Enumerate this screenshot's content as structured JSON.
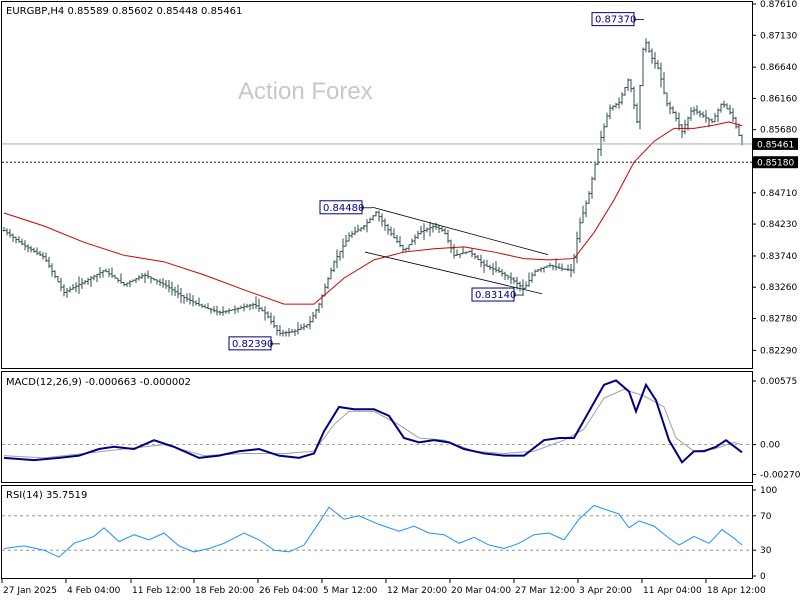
{
  "chart_data": {
    "type": "candlestick",
    "symbol_line": "EURGBP,H4  0.85589 0.85602 0.85448 0.85461",
    "watermark": "Action Forex",
    "price_axis_ticks": [
      "0.87610",
      "0.87130",
      "0.86640",
      "0.86160",
      "0.85680",
      "0.85200",
      "0.84710",
      "0.84230",
      "0.83740",
      "0.83260",
      "0.82780",
      "0.82290"
    ],
    "price_range": [
      0.8205,
      0.8761
    ],
    "current_price": "0.85461",
    "current_price_value": 0.85461,
    "level_line": "0.85180",
    "level_line_value": 0.8518,
    "annotations": [
      {
        "label": "0.84480",
        "value": 0.8448
      },
      {
        "label": "0.83140",
        "value": 0.8314
      },
      {
        "label": "0.82390",
        "value": 0.8239
      },
      {
        "label": "0.87370",
        "value": 0.8737
      }
    ],
    "channel": {
      "upper": [
        [
          0.8449,
          0.8376
        ],
        "top-line"
      ],
      "lower": [
        [
          0.838,
          0.8316
        ],
        "bottom-line"
      ]
    },
    "x_labels": [
      "27 Jan 2025",
      "4 Feb 04:00",
      "11 Feb 12:00",
      "18 Feb 20:00",
      "26 Feb 04:00",
      "5 Mar 12:00",
      "12 Mar 20:00",
      "20 Mar 04:00",
      "27 Mar 12:00",
      "3 Apr 20:00",
      "11 Apr 04:00",
      "18 Apr 12:00"
    ],
    "price_path": [
      [
        0,
        0.8413
      ],
      [
        20,
        0.839
      ],
      [
        40,
        0.8372
      ],
      [
        60,
        0.8318
      ],
      [
        80,
        0.8334
      ],
      [
        100,
        0.8352
      ],
      [
        120,
        0.833
      ],
      [
        140,
        0.8345
      ],
      [
        160,
        0.833
      ],
      [
        180,
        0.831
      ],
      [
        200,
        0.8295
      ],
      [
        215,
        0.8287
      ],
      [
        230,
        0.8292
      ],
      [
        250,
        0.83
      ],
      [
        262,
        0.8285
      ],
      [
        275,
        0.8255
      ],
      [
        290,
        0.8258
      ],
      [
        305,
        0.827
      ],
      [
        315,
        0.83
      ],
      [
        330,
        0.8365
      ],
      [
        345,
        0.8405
      ],
      [
        360,
        0.842
      ],
      [
        372,
        0.8441
      ],
      [
        385,
        0.8412
      ],
      [
        400,
        0.8382
      ],
      [
        415,
        0.841
      ],
      [
        430,
        0.842
      ],
      [
        440,
        0.8412
      ],
      [
        450,
        0.8375
      ],
      [
        465,
        0.8381
      ],
      [
        480,
        0.836
      ],
      [
        495,
        0.835
      ],
      [
        508,
        0.8338
      ],
      [
        520,
        0.8323
      ],
      [
        530,
        0.835
      ],
      [
        545,
        0.836
      ],
      [
        558,
        0.8354
      ],
      [
        568,
        0.8352
      ],
      [
        575,
        0.842
      ],
      [
        585,
        0.847
      ],
      [
        595,
        0.8545
      ],
      [
        605,
        0.86
      ],
      [
        615,
        0.861
      ],
      [
        625,
        0.8648
      ],
      [
        633,
        0.858
      ],
      [
        640,
        0.871
      ],
      [
        647,
        0.868
      ],
      [
        655,
        0.866
      ],
      [
        662,
        0.861
      ],
      [
        670,
        0.8592
      ],
      [
        678,
        0.8565
      ],
      [
        688,
        0.86
      ],
      [
        698,
        0.859
      ],
      [
        708,
        0.858
      ],
      [
        718,
        0.861
      ],
      [
        728,
        0.859
      ],
      [
        738,
        0.8546
      ]
    ],
    "ma_path": [
      [
        0,
        0.844
      ],
      [
        40,
        0.842
      ],
      [
        80,
        0.8395
      ],
      [
        120,
        0.8375
      ],
      [
        160,
        0.8365
      ],
      [
        200,
        0.8345
      ],
      [
        240,
        0.8322
      ],
      [
        280,
        0.83
      ],
      [
        310,
        0.83
      ],
      [
        340,
        0.834
      ],
      [
        370,
        0.8368
      ],
      [
        400,
        0.838
      ],
      [
        430,
        0.8385
      ],
      [
        460,
        0.8388
      ],
      [
        490,
        0.838
      ],
      [
        520,
        0.837
      ],
      [
        545,
        0.8368
      ],
      [
        570,
        0.837
      ],
      [
        590,
        0.841
      ],
      [
        610,
        0.846
      ],
      [
        630,
        0.8518
      ],
      [
        650,
        0.855
      ],
      [
        670,
        0.857
      ],
      [
        690,
        0.857
      ],
      [
        710,
        0.8575
      ],
      [
        725,
        0.858
      ],
      [
        738,
        0.8574
      ]
    ],
    "macd": {
      "label": "MACD(12,26,9) -0.000663 -0.000002",
      "ticks": [
        "0.00575",
        "0.00",
        "-0.002702"
      ],
      "range": [
        -0.0032,
        0.0062
      ],
      "zero_value": 0.0,
      "macd_path": [
        [
          0,
          -0.0012
        ],
        [
          30,
          -0.0014
        ],
        [
          55,
          -0.0012
        ],
        [
          75,
          -0.001
        ],
        [
          95,
          -0.0004
        ],
        [
          110,
          -0.0002
        ],
        [
          130,
          -0.0004
        ],
        [
          150,
          0.0004
        ],
        [
          170,
          -0.0002
        ],
        [
          195,
          -0.0012
        ],
        [
          215,
          -0.001
        ],
        [
          235,
          -0.0006
        ],
        [
          255,
          -0.0004
        ],
        [
          275,
          -0.001
        ],
        [
          295,
          -0.0012
        ],
        [
          310,
          -0.0008
        ],
        [
          320,
          0.0012
        ],
        [
          335,
          0.0034
        ],
        [
          350,
          0.0032
        ],
        [
          370,
          0.0032
        ],
        [
          385,
          0.0026
        ],
        [
          400,
          0.0006
        ],
        [
          415,
          0.0002
        ],
        [
          430,
          0.0004
        ],
        [
          445,
          0.0002
        ],
        [
          460,
          -0.0004
        ],
        [
          480,
          -0.0008
        ],
        [
          500,
          -0.001
        ],
        [
          520,
          -0.001
        ],
        [
          540,
          0.0004
        ],
        [
          555,
          0.0006
        ],
        [
          570,
          0.0006
        ],
        [
          580,
          0.0022
        ],
        [
          600,
          0.0054
        ],
        [
          612,
          0.0058
        ],
        [
          625,
          0.0048
        ],
        [
          632,
          0.003
        ],
        [
          642,
          0.0054
        ],
        [
          652,
          0.004
        ],
        [
          665,
          0.0004
        ],
        [
          678,
          -0.0016
        ],
        [
          690,
          -0.0006
        ],
        [
          700,
          -0.0006
        ],
        [
          712,
          -0.0002
        ],
        [
          722,
          0.0004
        ],
        [
          738,
          -0.0007
        ]
      ],
      "signal_path": [
        [
          0,
          -0.001
        ],
        [
          40,
          -0.0012
        ],
        [
          80,
          -0.0008
        ],
        [
          120,
          -0.0004
        ],
        [
          160,
          0.0
        ],
        [
          200,
          -0.001
        ],
        [
          240,
          -0.0008
        ],
        [
          280,
          -0.0008
        ],
        [
          310,
          -0.0006
        ],
        [
          330,
          0.0018
        ],
        [
          345,
          0.003
        ],
        [
          370,
          0.003
        ],
        [
          395,
          0.0018
        ],
        [
          415,
          0.0006
        ],
        [
          440,
          0.0004
        ],
        [
          470,
          -0.0006
        ],
        [
          500,
          -0.0008
        ],
        [
          530,
          -0.0006
        ],
        [
          560,
          0.0004
        ],
        [
          580,
          0.0014
        ],
        [
          600,
          0.0042
        ],
        [
          620,
          0.005
        ],
        [
          640,
          0.0044
        ],
        [
          660,
          0.0034
        ],
        [
          672,
          0.0006
        ],
        [
          690,
          -0.0006
        ],
        [
          710,
          -0.0004
        ],
        [
          730,
          0.0002
        ],
        [
          738,
          0.0
        ]
      ]
    },
    "rsi": {
      "label": "RSI(14) 35.7519",
      "ticks": [
        "100",
        "70",
        "30",
        "0"
      ],
      "range": [
        0,
        100
      ],
      "levels": [
        70,
        30
      ],
      "path": [
        [
          0,
          32
        ],
        [
          20,
          35
        ],
        [
          40,
          30
        ],
        [
          55,
          22
        ],
        [
          70,
          38
        ],
        [
          90,
          46
        ],
        [
          100,
          56
        ],
        [
          115,
          40
        ],
        [
          130,
          48
        ],
        [
          145,
          42
        ],
        [
          160,
          50
        ],
        [
          175,
          35
        ],
        [
          190,
          28
        ],
        [
          205,
          32
        ],
        [
          220,
          38
        ],
        [
          240,
          50
        ],
        [
          255,
          42
        ],
        [
          270,
          30
        ],
        [
          285,
          28
        ],
        [
          300,
          36
        ],
        [
          315,
          62
        ],
        [
          325,
          80
        ],
        [
          340,
          66
        ],
        [
          355,
          70
        ],
        [
          375,
          60
        ],
        [
          395,
          52
        ],
        [
          410,
          58
        ],
        [
          425,
          50
        ],
        [
          440,
          48
        ],
        [
          455,
          38
        ],
        [
          470,
          45
        ],
        [
          485,
          36
        ],
        [
          500,
          32
        ],
        [
          515,
          38
        ],
        [
          530,
          48
        ],
        [
          545,
          50
        ],
        [
          560,
          42
        ],
        [
          575,
          66
        ],
        [
          590,
          82
        ],
        [
          605,
          76
        ],
        [
          615,
          72
        ],
        [
          625,
          56
        ],
        [
          635,
          64
        ],
        [
          650,
          58
        ],
        [
          665,
          44
        ],
        [
          675,
          36
        ],
        [
          690,
          46
        ],
        [
          705,
          38
        ],
        [
          718,
          54
        ],
        [
          730,
          44
        ],
        [
          738,
          36
        ]
      ]
    }
  }
}
